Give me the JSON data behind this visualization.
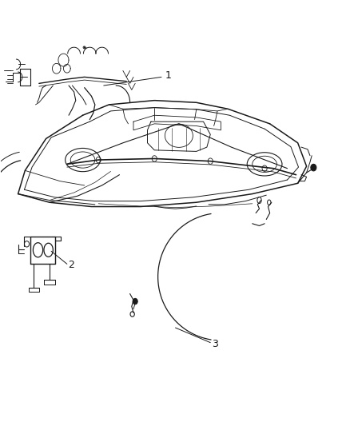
{
  "background_color": "#ffffff",
  "fig_width": 4.39,
  "fig_height": 5.33,
  "dpi": 100,
  "line_color": "#1a1a1a",
  "label_fontsize": 9,
  "callout_1": {
    "label": "1",
    "line": [
      [
        0.365,
        0.755
      ],
      [
        0.52,
        0.81
      ]
    ],
    "text": [
      0.525,
      0.812
    ]
  },
  "callout_2": {
    "label": "2",
    "line": [
      [
        0.14,
        0.41
      ],
      [
        0.185,
        0.375
      ]
    ],
    "text": [
      0.188,
      0.373
    ]
  },
  "callout_3": {
    "label": "3",
    "line": [
      [
        0.52,
        0.215
      ],
      [
        0.61,
        0.175
      ]
    ],
    "text": [
      0.615,
      0.173
    ]
  }
}
